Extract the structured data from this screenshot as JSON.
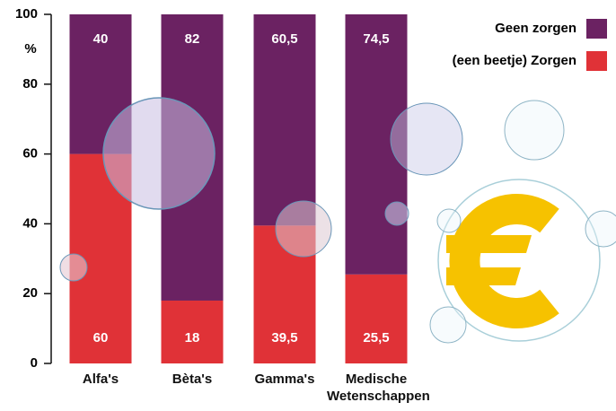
{
  "chart_data": {
    "type": "stacked_bar",
    "y_label": "%",
    "categories": [
      "Alfa's",
      "Bèta's",
      "Gamma's",
      "Medische Wetenschappen"
    ],
    "series": [
      {
        "name": "(een beetje) Zorgen",
        "color": "#e03237",
        "values": [
          60,
          18,
          39.5,
          25.5
        ],
        "value_labels": [
          "60",
          "18",
          "39,5",
          "25,5"
        ]
      },
      {
        "name": "Geen zorgen",
        "color": "#6b2262",
        "values": [
          40,
          82,
          60.5,
          74.5
        ],
        "value_labels": [
          "40",
          "82",
          "60,5",
          "74,5"
        ]
      }
    ],
    "ylim": [
      0,
      100
    ],
    "yticks": [
      0,
      20,
      40,
      60,
      80,
      100
    ],
    "legend": "top-right"
  }
}
